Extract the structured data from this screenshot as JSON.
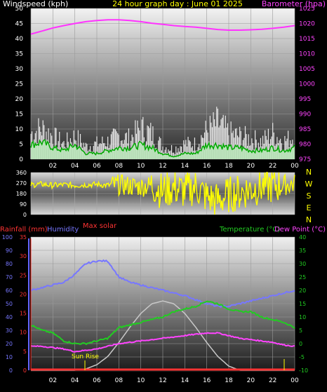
{
  "panel1": {
    "left_title": "Windspeed (kph)",
    "center_title": "24 hour graph day : June 01 2025",
    "right_title": "Barometer (hpa)",
    "left_ticks": [
      "0",
      "5",
      "10",
      "15",
      "20",
      "25",
      "30",
      "35",
      "40",
      "45",
      "50"
    ],
    "right_ticks": [
      "975",
      "980",
      "985",
      "990",
      "995",
      "1000",
      "1005",
      "1010",
      "1015",
      "1020",
      "1025"
    ],
    "colors": {
      "left_title": "#ffffff",
      "center_title": "#ffff00",
      "right_title": "#ff44ff",
      "baro": "#ff33ff",
      "gust": "#ffffff",
      "wind": "#00dd00",
      "avg": "#cfe8cf"
    }
  },
  "panel2": {
    "ticks": [
      "0",
      "90",
      "180",
      "270",
      "360"
    ],
    "compass": [
      "N",
      "W",
      "S",
      "E",
      "N"
    ],
    "color": "#ffff00"
  },
  "panel3": {
    "label_rain": "Rainfall (mm)",
    "label_humidity": "Humidity",
    "label_max_solar": "Max solar",
    "label_temp": "Temperature (°C)",
    "label_dew": "Dew Point (°C)",
    "label_sunrise": "Sun Rise",
    "humidity_ticks": [
      "0",
      "10",
      "20",
      "30",
      "40",
      "50",
      "60",
      "70",
      "80",
      "90",
      "100"
    ],
    "rain_ticks": [
      "0",
      "5",
      "10",
      "15",
      "20",
      "25",
      "30",
      "35"
    ],
    "temp_ticks": [
      "-10",
      "-5",
      "0",
      "5",
      "10",
      "15",
      "20",
      "25",
      "30",
      "35",
      "40"
    ],
    "colors": {
      "rain": "#ff3333",
      "humidity": "#7777ff",
      "max_solar": "#ff3333",
      "temp": "#22cc22",
      "dew": "#ff44ff",
      "solar": "#c0c0c0",
      "sunrise": "#ffff00"
    }
  },
  "x_labels": [
    "02",
    "04",
    "06",
    "08",
    "10",
    "12",
    "14",
    "16",
    "18",
    "20",
    "22",
    "00"
  ],
  "chart_data": [
    {
      "type": "line",
      "title": "24 hour graph day : June 01 2025",
      "x": [
        0,
        1,
        2,
        3,
        4,
        5,
        6,
        7,
        8,
        9,
        10,
        11,
        12,
        13,
        14,
        15,
        16,
        17,
        18,
        19,
        20,
        21,
        22,
        23,
        24
      ],
      "series": [
        {
          "name": "Barometer (hpa)",
          "axis": "right",
          "values": [
            1016.5,
            1017.5,
            1018.5,
            1019.3,
            1020.0,
            1020.6,
            1021.0,
            1021.2,
            1021.2,
            1021.0,
            1020.6,
            1020.1,
            1019.7,
            1019.3,
            1019.0,
            1018.8,
            1018.4,
            1018.0,
            1017.8,
            1017.8,
            1017.9,
            1018.1,
            1018.4,
            1018.8,
            1019.3
          ]
        },
        {
          "name": "Windspeed (kph)",
          "axis": "left",
          "values": [
            5,
            6,
            4,
            3,
            5,
            2,
            2,
            3,
            4,
            4,
            5,
            4,
            2,
            1,
            2,
            2,
            5,
            5,
            4,
            4,
            3,
            3,
            4,
            3,
            4
          ]
        },
        {
          "name": "Gust",
          "axis": "left",
          "values": [
            10,
            12,
            9,
            6,
            9,
            5,
            6,
            7,
            9,
            8,
            12,
            10,
            5,
            4,
            6,
            6,
            11,
            14,
            10,
            9,
            8,
            7,
            10,
            7,
            9
          ]
        }
      ],
      "ylim_left": [
        0,
        50
      ],
      "ylim_right": [
        975,
        1025
      ]
    },
    {
      "type": "scatter",
      "title": "",
      "x": [
        0,
        1,
        2,
        3,
        4,
        5,
        6,
        7,
        8,
        9,
        10,
        11,
        12,
        13,
        14,
        15,
        16,
        17,
        18,
        19,
        20,
        21,
        22,
        23,
        24
      ],
      "series": [
        {
          "name": "Wind direction",
          "values": [
            255,
            260,
            250,
            255,
            250,
            255,
            258,
            250,
            255,
            245,
            240,
            250,
            200,
            230,
            200,
            240,
            150,
            120,
            170,
            190,
            220,
            240,
            250,
            255,
            260
          ]
        }
      ],
      "ylim": [
        0,
        360
      ]
    },
    {
      "type": "line",
      "title": "",
      "x": [
        0,
        1,
        2,
        3,
        4,
        5,
        6,
        7,
        8,
        9,
        10,
        11,
        12,
        13,
        14,
        15,
        16,
        17,
        18,
        19,
        20,
        21,
        22,
        23,
        24
      ],
      "series": [
        {
          "name": "Humidity",
          "axis": "humidity",
          "values": [
            60,
            62,
            64,
            66,
            72,
            80,
            82,
            82,
            70,
            66,
            64,
            62,
            60,
            58,
            56,
            53,
            50,
            48,
            48,
            50,
            52,
            54,
            56,
            58,
            60
          ]
        },
        {
          "name": "Temperature (°C)",
          "axis": "temp",
          "values": [
            7,
            5,
            4,
            1,
            0,
            0,
            1,
            2,
            6,
            7,
            8,
            9,
            10,
            12,
            13,
            14,
            16,
            15,
            13,
            12,
            12,
            10,
            9,
            8,
            6
          ]
        },
        {
          "name": "Dew Point (°C)",
          "axis": "temp",
          "values": [
            -1,
            -1,
            -1.5,
            -2,
            -3,
            -2.5,
            -2,
            -1,
            0,
            0.5,
            1,
            1.5,
            2,
            2.5,
            3,
            3.5,
            4,
            4,
            3,
            2,
            1.5,
            1,
            0.5,
            -0.5,
            -1
          ]
        },
        {
          "name": "Max solar",
          "axis": "solar",
          "values": [
            0,
            0,
            0,
            0,
            0,
            2,
            8,
            20,
            40,
            62,
            82,
            96,
            100,
            96,
            82,
            62,
            40,
            20,
            6,
            0,
            0,
            0,
            0,
            0,
            0
          ]
        },
        {
          "name": "Rainfall (mm)",
          "axis": "rain",
          "values": [
            0,
            0,
            0,
            0,
            0,
            0,
            0,
            0,
            0,
            0,
            0,
            0,
            0,
            0,
            0,
            0,
            0,
            0,
            0,
            0,
            0,
            0,
            0,
            0,
            0
          ]
        }
      ],
      "ylim_humidity": [
        0,
        100
      ],
      "ylim_rain": [
        0,
        35
      ],
      "ylim_temp": [
        -10,
        40
      ]
    }
  ]
}
